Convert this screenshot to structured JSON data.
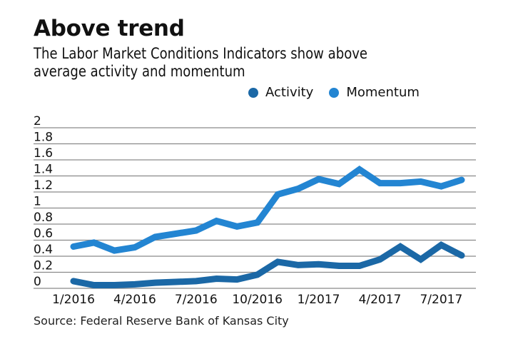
{
  "header": {
    "title": "Above trend",
    "subtitle_line1": "The Labor Market Conditions Indicators show above",
    "subtitle_line2": "average activity and momentum"
  },
  "footer": {
    "source": "Source: Federal Reserve Bank of Kansas City"
  },
  "colors": {
    "activity": "#1b68a6",
    "momentum": "#2385d2",
    "grid": "#8a8a8a"
  },
  "chart_data": {
    "type": "line",
    "title": "Above trend",
    "subtitle": "The Labor Market Conditions Indicators show above average activity and momentum",
    "xlabel": "",
    "ylabel": "",
    "ylim": [
      0,
      2
    ],
    "y_ticks": [
      "0",
      "0.2",
      "0.4",
      "0.6",
      "0.8",
      "1",
      "1.2",
      "1.4",
      "1.6",
      "1.8",
      "2"
    ],
    "y_tick_values": [
      0,
      0.2,
      0.4,
      0.6,
      0.8,
      1,
      1.2,
      1.4,
      1.6,
      1.8,
      2
    ],
    "x": [
      "1/2016",
      "2/2016",
      "3/2016",
      "4/2016",
      "5/2016",
      "6/2016",
      "7/2016",
      "8/2016",
      "9/2016",
      "10/2016",
      "11/2016",
      "12/2016",
      "1/2017",
      "2/2017",
      "3/2017",
      "4/2017",
      "5/2017",
      "6/2017",
      "7/2017",
      "8/2017"
    ],
    "x_tick_labels": [
      "1/2016",
      "4/2016",
      "7/2016",
      "10/2016",
      "1/2017",
      "4/2017",
      "7/2017"
    ],
    "x_tick_indices": [
      0,
      3,
      6,
      9,
      12,
      15,
      18
    ],
    "grid": true,
    "legend_position": "top-right",
    "series": [
      {
        "name": "Activity",
        "values": [
          0.09,
          0.04,
          0.04,
          0.05,
          0.07,
          0.08,
          0.09,
          0.12,
          0.11,
          0.17,
          0.33,
          0.29,
          0.3,
          0.28,
          0.28,
          0.36,
          0.52,
          0.36,
          0.54,
          0.41
        ]
      },
      {
        "name": "Momentum",
        "values": [
          0.52,
          0.57,
          0.47,
          0.51,
          0.64,
          0.68,
          0.72,
          0.84,
          0.77,
          0.82,
          1.17,
          1.24,
          1.36,
          1.3,
          1.48,
          1.31,
          1.31,
          1.33,
          1.27,
          1.35
        ]
      }
    ],
    "source": "Source: Federal Reserve Bank of Kansas City"
  }
}
